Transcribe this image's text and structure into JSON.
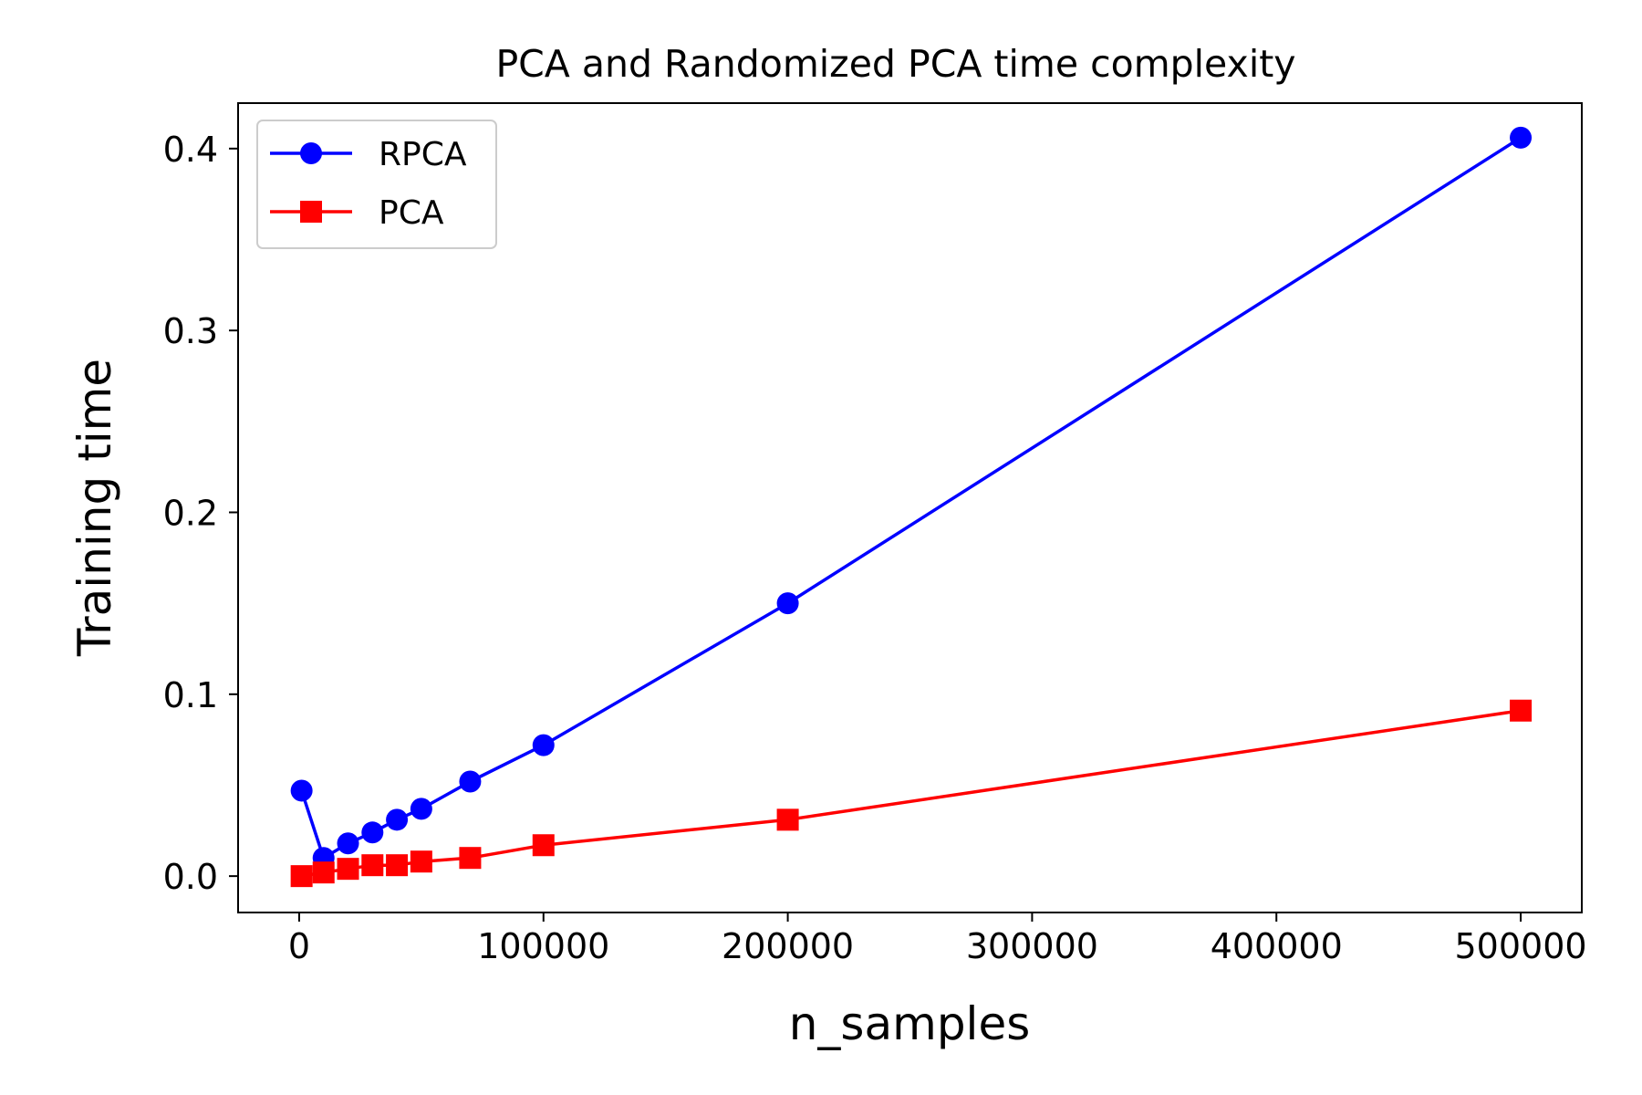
{
  "chart_data": {
    "type": "line",
    "title": "PCA and Randomized PCA time complexity",
    "xlabel": "n_samples",
    "ylabel": "Training time",
    "xlim": [
      -25000,
      525000
    ],
    "ylim": [
      -0.02,
      0.425
    ],
    "xticks": [
      0,
      100000,
      200000,
      300000,
      400000,
      500000
    ],
    "xtick_labels": [
      "0",
      "100000",
      "200000",
      "300000",
      "400000",
      "500000"
    ],
    "yticks": [
      0.0,
      0.1,
      0.2,
      0.3,
      0.4
    ],
    "ytick_labels": [
      "0.0",
      "0.1",
      "0.2",
      "0.3",
      "0.4"
    ],
    "grid": false,
    "legend_position": "top-left",
    "x": [
      1000,
      10000,
      20000,
      30000,
      40000,
      50000,
      70000,
      100000,
      200000,
      500000
    ],
    "series": [
      {
        "name": "RPCA",
        "color": "#0000ff",
        "marker": "circle",
        "values": [
          0.047,
          0.01,
          0.018,
          0.024,
          0.031,
          0.037,
          0.052,
          0.072,
          0.15,
          0.406
        ]
      },
      {
        "name": "PCA",
        "color": "#ff0000",
        "marker": "square",
        "values": [
          0.0,
          0.002,
          0.004,
          0.006,
          0.006,
          0.008,
          0.01,
          0.017,
          0.031,
          0.091
        ]
      }
    ]
  }
}
